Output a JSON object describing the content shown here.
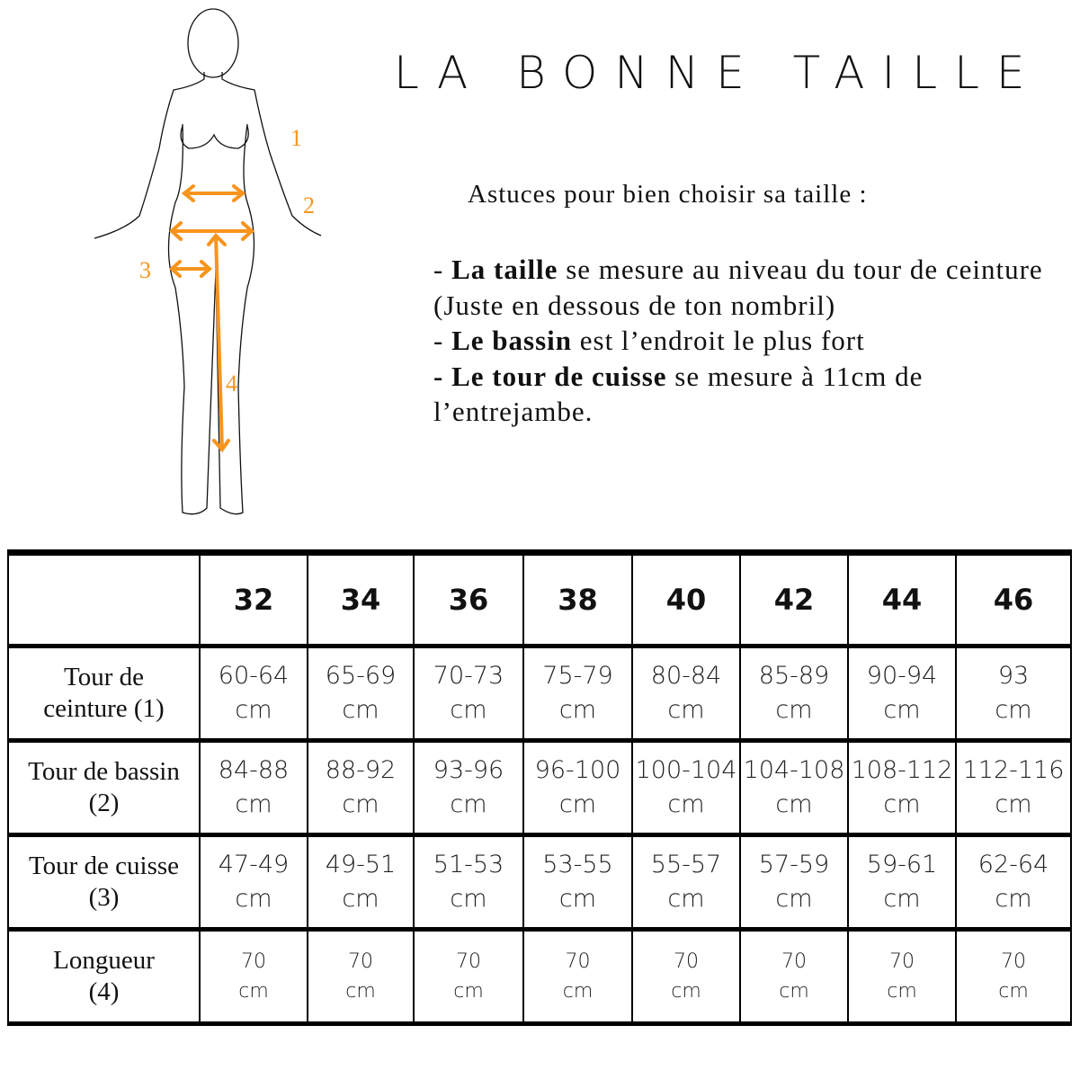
{
  "title": "LA BONNE TAILLE",
  "figure": {
    "markers": [
      "1",
      "2",
      "3",
      "4"
    ],
    "accent_color": "#f7941d"
  },
  "tips": {
    "heading": "Astuces pour bien choisir sa taille :",
    "items": [
      {
        "prefix": "- ",
        "bold": "La taille",
        "text": " se mesure au niveau du tour de ceinture (Juste en dessous de ton nombril)"
      },
      {
        "prefix": "- ",
        "bold": "Le bassin",
        "text": " est l’endroit le plus fort"
      },
      {
        "prefix": "- ",
        "bold": "Le tour de cuisse",
        "text": " se mesure à 11cm de l’entrejambe."
      }
    ]
  },
  "table": {
    "sizes": [
      "32",
      "34",
      "36",
      "38",
      "40",
      "42",
      "44",
      "46"
    ],
    "rows": [
      {
        "label": [
          "Tour de",
          "ceinture  (1)"
        ],
        "values": [
          "60-64",
          "65-69",
          "70-73",
          "75-79",
          "80-84",
          "85-89",
          "90-94",
          "93"
        ]
      },
      {
        "label": [
          "Tour de bassin",
          "(2)"
        ],
        "values": [
          "84-88",
          "88-92",
          "93-96",
          "96-100",
          "100-104",
          "104-108",
          "108-112",
          "112-116"
        ]
      },
      {
        "label": [
          "Tour de cuisse",
          "(3)"
        ],
        "values": [
          "47-49",
          "49-51",
          "51-53",
          "53-55",
          "55-57",
          "57-59",
          "59-61",
          "62-64"
        ]
      },
      {
        "label": [
          "Longueur",
          "(4)"
        ],
        "values": [
          "70",
          "70",
          "70",
          "70",
          "70",
          "70",
          "70",
          "70"
        ]
      }
    ],
    "unit": "cm"
  }
}
